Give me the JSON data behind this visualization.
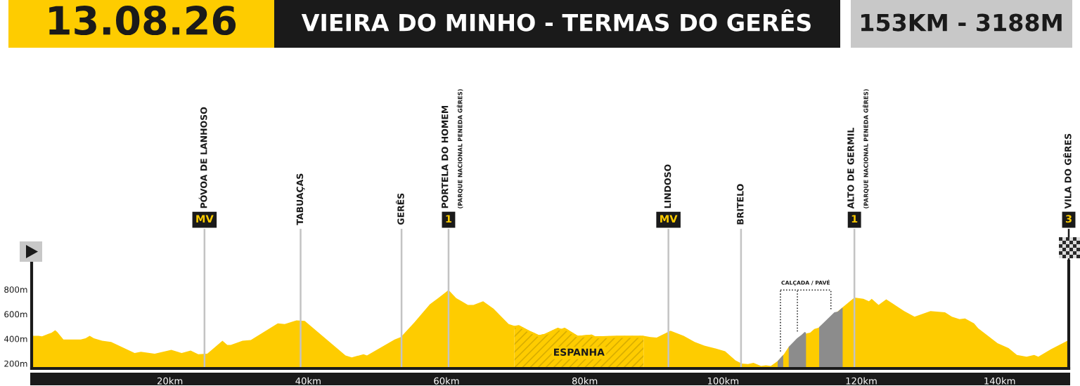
{
  "chart_data": {
    "type": "area",
    "title": "VIEIRA DO MINHO - TERMAS DO GERÊS",
    "subtitle": "153KM - 3188M",
    "annotations": [
      "13.08.26"
    ],
    "x": [
      0,
      1.0,
      1.5,
      2.4,
      2.9,
      3.4,
      3.7,
      4.6,
      7.1,
      7.8,
      8.4,
      9.0,
      10.2,
      11.5,
      14.9,
      15.8,
      17.8,
      19.0,
      20.2,
      21.7,
      23.0,
      24.1,
      25.4,
      27.6,
      28.3,
      28.8,
      30.5,
      31.7,
      35.6,
      36.6,
      38.3,
      39.5,
      45.4,
      46.3,
      48.0,
      48.5,
      52.5,
      53.4,
      55.3,
      57.6,
      58.8,
      60.3,
      61.4,
      62.2,
      63.1,
      63.9,
      65.3,
      66.8,
      69.0,
      69.8,
      70.5,
      72.0,
      73.4,
      74.2,
      76.1,
      76.6,
      77.1,
      79.0,
      81.0,
      81.5,
      84.8,
      88.5,
      89.5,
      90.4,
      92.4,
      94.3,
      95.9,
      97.3,
      98.7,
      100.3,
      101.8,
      102.7,
      103.6,
      104.4,
      105.5,
      106.2,
      106.9,
      107.9,
      108.8,
      109.5,
      112.1,
      112.6,
      113.2,
      113.8,
      117.4,
      119.0,
      120.3,
      121.1,
      121.5,
      122.5,
      123.6,
      126.2,
      127.7,
      130.0,
      132.1,
      133.1,
      134.2,
      135.0,
      136.3,
      136.9,
      139.7,
      141.3,
      142.5,
      143.9,
      145.0,
      145.6,
      147.4,
      150.0
    ],
    "series": [
      {
        "color": "#fecc00",
        "values": [
          425,
          425,
          420,
          440,
          450,
          470,
          455,
          395,
          395,
          405,
          425,
          405,
          385,
          375,
          285,
          295,
          280,
          295,
          310,
          285,
          305,
          275,
          280,
          385,
          350,
          350,
          385,
          390,
          525,
          520,
          550,
          545,
          265,
          250,
          275,
          265,
          395,
          415,
          530,
          680,
          730,
          795,
          730,
          705,
          675,
          675,
          705,
          645,
          520,
          505,
          510,
          465,
          430,
          440,
          490,
          480,
          490,
          425,
          435,
          420,
          425,
          425,
          415,
          410,
          465,
          425,
          375,
          345,
          325,
          300,
          225,
          200,
          195,
          205,
          180,
          185,
          180,
          220,
          275,
          335,
          445,
          450,
          480,
          490,
          660,
          735,
          725,
          705,
          725,
          675,
          720,
          625,
          580,
          625,
          615,
          580,
          560,
          565,
          525,
          485,
          365,
          325,
          270,
          255,
          270,
          255,
          315,
          390
        ]
      },
      {
        "name": "CALÇADA / PAVÉ",
        "color": "#8c8c8c",
        "x": [
          107.9,
          108.7,
          109.1,
          109.5,
          110.7,
          111.4,
          111.8,
          112.0,
          113.0,
          113.9,
          116.1,
          116.6,
          117.3
        ],
        "values": [
          220,
          270,
          null,
          335,
          405,
          435,
          455,
          450,
          null,
          495,
          615,
          620,
          655
        ]
      }
    ],
    "xlim": [
      0,
      150
    ],
    "xticks": [
      {
        "value": 20,
        "label": "20km"
      },
      {
        "value": 40,
        "label": "40km"
      },
      {
        "value": 60,
        "label": "60km"
      },
      {
        "value": 80,
        "label": "80km"
      },
      {
        "value": 100,
        "label": "100km"
      },
      {
        "value": 120,
        "label": "120km"
      },
      {
        "value": 140,
        "label": "140km"
      }
    ],
    "ylim": [
      160,
      1030
    ],
    "yticks": [
      {
        "value": 200,
        "label": "200m"
      },
      {
        "value": 400,
        "label": "400m"
      },
      {
        "value": 600,
        "label": "600m"
      },
      {
        "value": 800,
        "label": "800m"
      }
    ],
    "ref_lines": [
      {
        "axis": "x",
        "value": 25.0,
        "label": "PÓVOA DE LANHOSO\nMV",
        "color": "#c3c3c3"
      },
      {
        "axis": "x",
        "value": 38.9,
        "label": "TABUAÇAS",
        "color": "#c3c3c3"
      },
      {
        "axis": "x",
        "value": 53.5,
        "label": "GERÊS",
        "color": "#c3c3c3"
      },
      {
        "axis": "x",
        "value": 60.3,
        "label": "PORTELA DO HOMEM\n(PARQUE NACIONAL PENEDA GÊRES)\n1",
        "color": "#c3c3c3"
      },
      {
        "axis": "x",
        "value": 92.1,
        "label": "LINDOSO\nMV",
        "color": "#c3c3c3"
      },
      {
        "axis": "x",
        "value": 102.6,
        "label": "BRITELO",
        "color": "#c3c3c3"
      },
      {
        "axis": "x",
        "value": 119.0,
        "label": "ALTO DE GERMIL\n(PARQUE NACIONAL PENEDA GÊRES)\n1",
        "color": "#c3c3c3"
      },
      {
        "axis": "x",
        "value": 150.0,
        "label": "VILA DO GÊRES\n3",
        "color": "#1a1a1a"
      }
    ],
    "bands": [
      {
        "axis": "x",
        "from": 69.8,
        "to": 88.5,
        "label": "ESPANHA",
        "color": "#d9ae00"
      }
    ]
  }
}
